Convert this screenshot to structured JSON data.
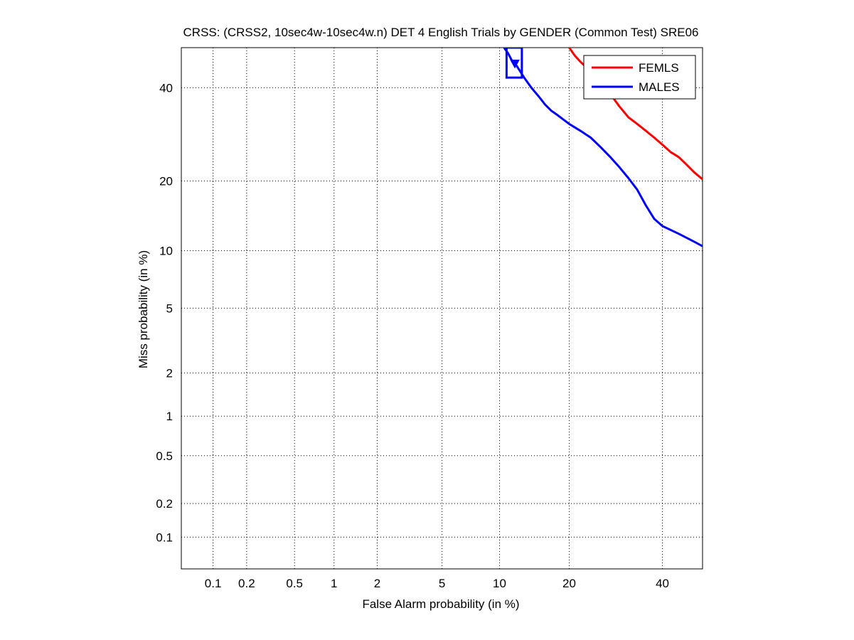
{
  "chart_data": {
    "type": "line",
    "title": "CRSS: (CRSS2, 10sec4w-10sec4w.n) DET 4 English Trials by GENDER (Common Test) SRE06",
    "xlabel": "False Alarm probability (in %)",
    "ylabel": "Miss probability (in %)",
    "x_scale": "normal-deviate (probit)",
    "y_scale": "normal-deviate (probit)",
    "xlim": [
      0.05,
      50
    ],
    "ylim": [
      0.05,
      50
    ],
    "x_ticks": [
      "0.1",
      "0.2",
      "0.5",
      "1",
      "2",
      "5",
      "10",
      "20",
      "40"
    ],
    "y_ticks": [
      "0.1",
      "0.2",
      "0.5",
      "1",
      "2",
      "5",
      "10",
      "20",
      "40"
    ],
    "grid": true,
    "legend_position": "top-right",
    "series": [
      {
        "name": "FEMLS",
        "color": "#ff0000",
        "x": [
          20,
          21,
          22,
          24,
          26,
          28,
          30,
          32,
          34,
          36,
          38,
          40,
          42,
          44,
          46,
          48,
          50
        ],
        "y": [
          50,
          48,
          46.5,
          44,
          41.5,
          38.5,
          35.5,
          33,
          31.5,
          30,
          28.5,
          27,
          25.5,
          24.5,
          23,
          21.5,
          20.3
        ]
      },
      {
        "name": "MALES",
        "color": "#0000ff",
        "x": [
          10.5,
          11,
          11.5,
          12,
          12.5,
          13,
          14,
          15,
          16,
          17,
          18,
          20,
          22,
          24,
          26,
          28,
          30,
          32,
          34,
          36,
          38,
          40,
          42,
          44,
          46,
          48,
          50
        ],
        "y": [
          50,
          48.5,
          46.5,
          45.5,
          44,
          42.5,
          40,
          38,
          36,
          34.5,
          33.5,
          31.5,
          30,
          28.5,
          26.5,
          24.5,
          22.5,
          20.5,
          18.5,
          16,
          14,
          13,
          12.5,
          12,
          11.5,
          11,
          10.5
        ]
      }
    ],
    "annotations": [
      {
        "type": "box",
        "series": "MALES",
        "x_range": [
          10.8,
          12.7
        ],
        "y_range": [
          42.5,
          50
        ]
      },
      {
        "type": "marker",
        "series": "MALES",
        "x": 11.8,
        "y": 46
      }
    ]
  }
}
